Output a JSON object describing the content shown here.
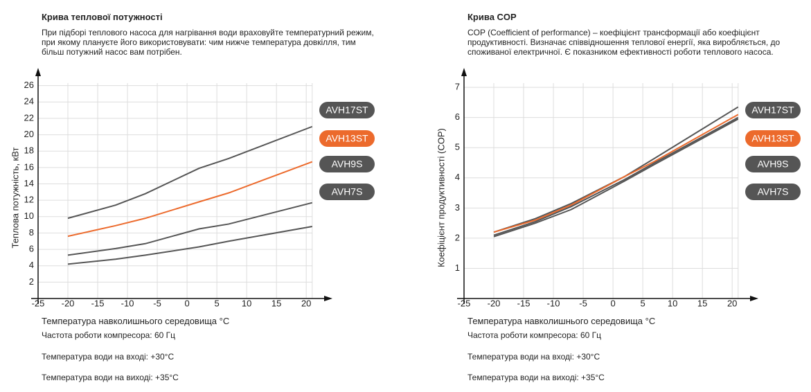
{
  "chart_data": [
    {
      "type": "line",
      "title": "Крива теплової потужності",
      "subtitle": "При підборі теплового насоса для нагрівання води враховуйте температурний режим, при якому плануєте його використовувати: чим нижче температура довкілля, тим більш потужний насос вам потрібен.",
      "x_label": "Температура навколишнього середовища °С",
      "y_label": "Теплова потужність, кВт",
      "notes": [
        "Частота роботи компресора: 60 Гц",
        "Температура води на вході: +30°С",
        "Температура води на виході: +35°С"
      ],
      "x": [
        -20,
        -12,
        -7,
        2,
        7,
        21
      ],
      "series": [
        {
          "name": "AVH17ST",
          "color": "#555555",
          "values": [
            9.8,
            11.4,
            12.8,
            15.9,
            17.1,
            21.0
          ]
        },
        {
          "name": "AVH13ST",
          "color": "#ec6a2c",
          "values": [
            7.6,
            8.9,
            9.8,
            11.8,
            12.9,
            16.7
          ]
        },
        {
          "name": "AVH9S",
          "color": "#555555",
          "values": [
            5.3,
            6.1,
            6.7,
            8.5,
            9.1,
            11.7
          ]
        },
        {
          "name": "AVH7S",
          "color": "#555555",
          "values": [
            4.2,
            4.8,
            5.3,
            6.3,
            7.0,
            8.8
          ]
        }
      ],
      "xlim": [
        -25,
        23
      ],
      "xticks": [
        -25,
        -20,
        -15,
        -10,
        -5,
        0,
        5,
        10,
        15,
        20
      ],
      "ylim": [
        0,
        28
      ],
      "yticks": [
        2,
        4,
        6,
        8,
        10,
        12,
        14,
        16,
        18,
        20,
        22,
        24,
        26
      ],
      "grid": true
    },
    {
      "type": "line",
      "title": "Крива COP",
      "subtitle": "COP (Coefficient of performance) – коефіцієнт трансформації або коефіцієнт продуктивності. Визначає співвідношення теплової енергії, яка виробляється, до споживаної електричної. Є показником ефективності роботи теплового насоса.",
      "x_label": "Температура навколишнього середовища °С",
      "y_label": "Коефіцієнт продуктивності (COP)",
      "notes": [
        "Частота роботи компресора: 60 Гц",
        "Температура води на вході: +30°С",
        "Температура води на виході: +35°С"
      ],
      "x": [
        -20,
        -13,
        -7,
        2,
        7,
        21
      ],
      "series": [
        {
          "name": "AVH17ST",
          "color": "#555555",
          "values": [
            2.2,
            2.65,
            3.15,
            4.05,
            4.65,
            6.35
          ]
        },
        {
          "name": "AVH13ST",
          "color": "#ec6a2c",
          "values": [
            2.2,
            2.6,
            3.1,
            4.05,
            4.55,
            6.1
          ]
        },
        {
          "name": "AVH9S",
          "color": "#555555",
          "values": [
            2.1,
            2.55,
            3.05,
            3.95,
            4.5,
            6.0
          ]
        },
        {
          "name": "AVH7S",
          "color": "#555555",
          "values": [
            2.05,
            2.5,
            2.95,
            3.9,
            4.45,
            5.95
          ]
        }
      ],
      "xlim": [
        -25,
        23
      ],
      "xticks": [
        -25,
        -20,
        -15,
        -10,
        -5,
        0,
        5,
        10,
        15,
        20
      ],
      "ylim": [
        0,
        7.6
      ],
      "yticks": [
        1,
        2,
        3,
        4,
        5,
        6,
        7
      ],
      "grid": true
    }
  ]
}
